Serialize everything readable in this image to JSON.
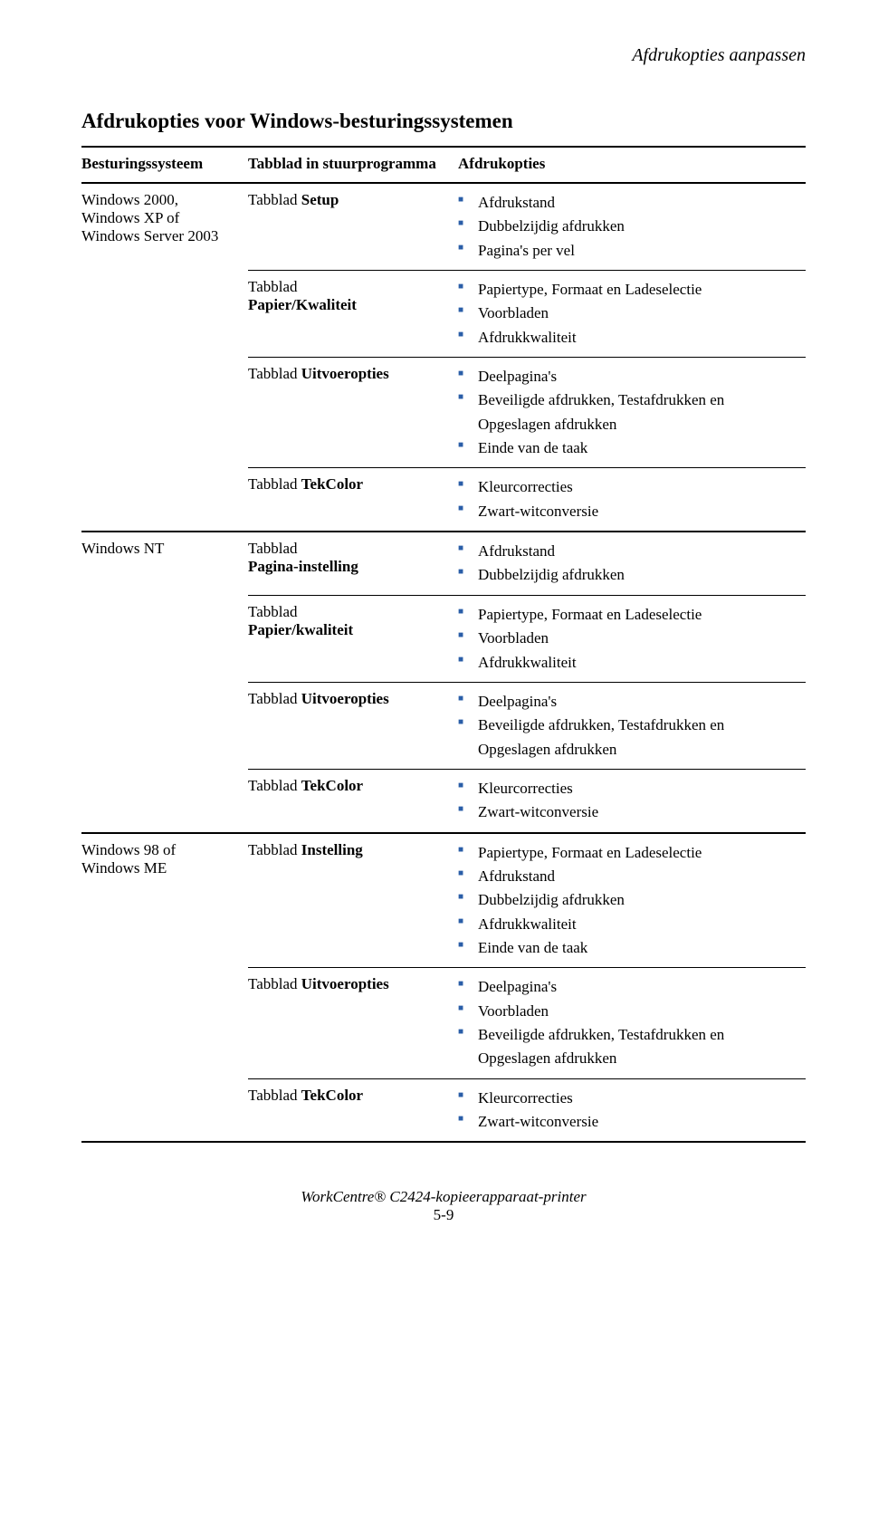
{
  "header_right": "Afdrukopties aanpassen",
  "section_title": "Afdrukopties voor Windows-besturingssystemen",
  "table": {
    "headers": [
      "Besturingssysteem",
      "Tabblad in stuurprogramma",
      "Afdrukopties"
    ],
    "groups": [
      {
        "os": "Windows 2000, Windows XP of Windows Server 2003",
        "rows": [
          {
            "tab_prefix": "Tabblad ",
            "tab_bold": "Setup",
            "opts": [
              "Afdrukstand",
              "Dubbelzijdig afdrukken",
              "Pagina's per vel"
            ]
          },
          {
            "tab_lines": [
              "Tabblad",
              "Papier/Kwaliteit"
            ],
            "bold_all": true,
            "opts": [
              "Papiertype, Formaat en Ladeselectie",
              "Voorbladen",
              "Afdrukkwaliteit"
            ]
          },
          {
            "tab_prefix": "Tabblad ",
            "tab_bold": "Uitvoeropties",
            "opts": [
              "Deelpagina's",
              "Beveiligde afdrukken, Testafdrukken en Opgeslagen afdrukken",
              "Einde van de taak"
            ]
          },
          {
            "tab_prefix": "Tabblad ",
            "tab_bold": "TekColor",
            "opts": [
              "Kleurcorrecties",
              "Zwart-witconversie"
            ]
          }
        ]
      },
      {
        "os": "Windows NT",
        "rows": [
          {
            "tab_lines": [
              "Tabblad",
              "Pagina-instelling"
            ],
            "bold_all": true,
            "opts": [
              "Afdrukstand",
              "Dubbelzijdig afdrukken"
            ]
          },
          {
            "tab_lines": [
              "Tabblad",
              "Papier/kwaliteit"
            ],
            "bold_all": true,
            "opts": [
              "Papiertype, Formaat en Ladeselectie",
              "Voorbladen",
              "Afdrukkwaliteit"
            ]
          },
          {
            "tab_prefix": "Tabblad ",
            "tab_bold": "Uitvoeropties",
            "opts": [
              "Deelpagina's",
              "Beveiligde afdrukken, Testafdrukken en Opgeslagen afdrukken"
            ]
          },
          {
            "tab_prefix": "Tabblad ",
            "tab_bold": "TekColor",
            "opts": [
              "Kleurcorrecties",
              "Zwart-witconversie"
            ]
          }
        ]
      },
      {
        "os": "Windows 98 of Windows ME",
        "rows": [
          {
            "tab_prefix": "Tabblad ",
            "tab_bold": "Instelling",
            "opts": [
              "Papiertype, Formaat en Ladeselectie",
              "Afdrukstand",
              "Dubbelzijdig afdrukken",
              "Afdrukkwaliteit",
              "Einde van de taak"
            ]
          },
          {
            "tab_prefix": "Tabblad ",
            "tab_bold": "Uitvoeropties",
            "opts": [
              "Deelpagina's",
              "Voorbladen",
              "Beveiligde afdrukken, Testafdrukken en Opgeslagen afdrukken"
            ]
          },
          {
            "tab_prefix": "Tabblad ",
            "tab_bold": "TekColor",
            "opts": [
              "Kleurcorrecties",
              "Zwart-witconversie"
            ]
          }
        ]
      }
    ]
  },
  "footer_line": "WorkCentre® C2424-kopieerapparaat-printer",
  "footer_page": "5-9",
  "bullet_color": "#2a5ea8"
}
